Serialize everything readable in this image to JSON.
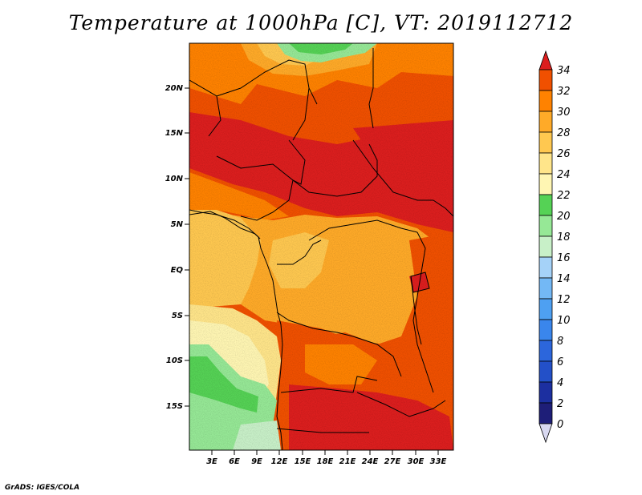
{
  "title": "Temperature at 1000hPa [C], VT: 2019112712",
  "footer": "GrADS: IGES/COLA",
  "colors": {
    "c0": "#1e1e78",
    "c2": "#1c2fa0",
    "c4": "#2350c8",
    "c6": "#2c66dc",
    "c8": "#3a86ec",
    "c10": "#4ea0f2",
    "c12": "#73b8f5",
    "c14": "#a5d2f8",
    "c16": "#c8f0c8",
    "c18": "#96e896",
    "c20": "#55d255",
    "c22": "#fff6b3",
    "c24": "#ffe58a",
    "c26": "#ffc850",
    "c28": "#ffaa28",
    "c30": "#ff8200",
    "c32": "#f05000",
    "c34": "#dc1e1e",
    "under": "#d8d8f0"
  },
  "chart_data": {
    "type": "heatmap",
    "variable": "Temperature at 1000hPa",
    "units": "C",
    "valid_time": "2019112712",
    "lon_range": [
      0,
      35
    ],
    "lat_range": [
      -20,
      24
    ],
    "x_ticks": [
      "3E",
      "6E",
      "9E",
      "12E",
      "15E",
      "18E",
      "21E",
      "24E",
      "27E",
      "30E",
      "33E"
    ],
    "y_ticks": [
      "20N",
      "15N",
      "10N",
      "5N",
      "EQ",
      "5S",
      "10S",
      "15S"
    ],
    "colorbar": {
      "levels": [
        0,
        2,
        4,
        6,
        8,
        10,
        12,
        14,
        16,
        18,
        20,
        22,
        24,
        26,
        28,
        30,
        32,
        34
      ],
      "labels": [
        "0",
        "2",
        "4",
        "6",
        "8",
        "10",
        "12",
        "14",
        "16",
        "18",
        "20",
        "22",
        "24",
        "26",
        "28",
        "30",
        "32",
        "34"
      ]
    }
  }
}
